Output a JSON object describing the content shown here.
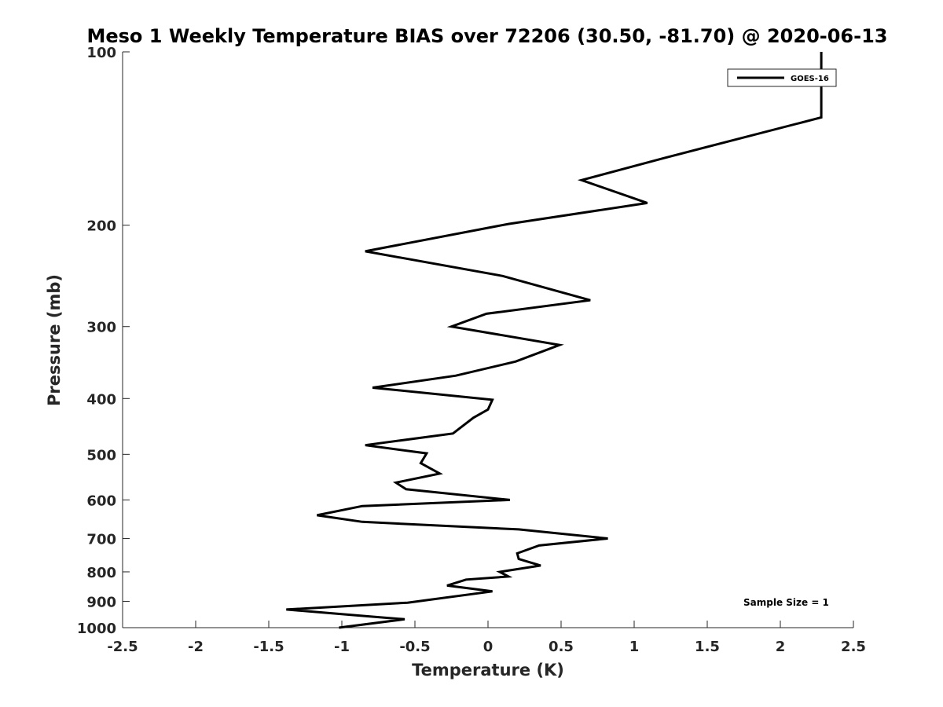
{
  "chart_data": {
    "type": "line",
    "title": "Meso 1 Weekly Temperature BIAS over 72206 (30.50, -81.70) @ 2020-06-13",
    "xlabel": "Temperature (K)",
    "ylabel": "Pressure (mb)",
    "xlim": [
      -2.5,
      2.5
    ],
    "ylim": [
      100,
      1000
    ],
    "y_scale": "log",
    "y_reversed": true,
    "x_ticks": [
      -2.5,
      -2,
      -1.5,
      -1,
      -0.5,
      0,
      0.5,
      1,
      1.5,
      2,
      2.5
    ],
    "x_tick_labels": [
      "-2.5",
      "-2",
      "-1.5",
      "-1",
      "-0.5",
      "0",
      "0.5",
      "1",
      "1.5",
      "2",
      "2.5"
    ],
    "y_ticks": [
      100,
      200,
      300,
      400,
      500,
      600,
      700,
      800,
      900,
      1000
    ],
    "y_tick_labels": [
      "100",
      "200",
      "300",
      "400",
      "500",
      "600",
      "700",
      "800",
      "900",
      "1000"
    ],
    "grid": false,
    "legend": "top-right",
    "annotation": "Sample Size = 1",
    "line_color": "#000000",
    "series": [
      {
        "name": "GOES-16",
        "x": [
          2.28,
          2.28,
          1.2,
          0.64,
          1.09,
          0.14,
          -0.84,
          0.1,
          0.7,
          -0.01,
          -0.25,
          0.49,
          0.19,
          -0.22,
          -0.79,
          0.03,
          0.0,
          -0.1,
          -0.24,
          -0.84,
          -0.42,
          -0.46,
          -0.33,
          -0.63,
          -0.56,
          0.15,
          -0.86,
          -1.17,
          -0.86,
          0.21,
          0.82,
          0.35,
          0.2,
          0.21,
          0.36,
          0.08,
          0.14,
          -0.15,
          -0.28,
          0.03,
          -0.55,
          -1.38,
          -0.84,
          -0.57,
          -1.02
        ],
        "y": [
          100,
          130,
          153,
          167,
          183,
          199,
          222,
          245,
          270,
          285,
          300,
          323,
          345,
          365,
          383,
          402,
          418,
          432,
          460,
          482,
          498,
          518,
          540,
          560,
          575,
          600,
          615,
          638,
          655,
          675,
          700,
          720,
          743,
          760,
          780,
          800,
          815,
          825,
          845,
          865,
          905,
          930,
          955,
          967,
          1000
        ]
      }
    ]
  }
}
